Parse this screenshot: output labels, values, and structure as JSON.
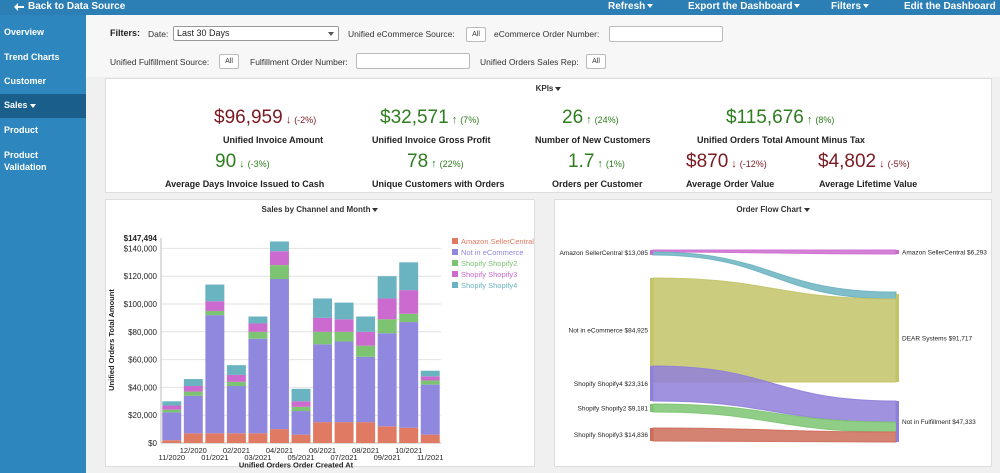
{
  "topbar": {
    "back_label": "Back to Data Source",
    "refresh_label": "Refresh",
    "export_label": "Export the Dashboard",
    "filters_label": "Filters",
    "edit_label": "Edit the Dashboard"
  },
  "sidebar": {
    "items": [
      {
        "label": "Overview"
      },
      {
        "label": "Trend Charts"
      },
      {
        "label": "Customer"
      },
      {
        "label": "Sales"
      },
      {
        "label": "Product"
      },
      {
        "label": "Product Validation"
      }
    ]
  },
  "filters": {
    "title": "Filters:",
    "date_label": "Date:",
    "date_value": "Last 30 Days",
    "ecom_source_label": "Unified eCommerce Source:",
    "ecom_source_value": "All",
    "ecom_order_label": "eCommerce Order Number:",
    "fulfill_source_label": "Unified Fulfillment Source:",
    "fulfill_source_value": "All",
    "fulfill_order_label": "Fulfillment Order Number:",
    "sales_rep_label": "Unified Orders Sales Rep:",
    "sales_rep_value": "All"
  },
  "kpis": {
    "title": "KPIs",
    "items": [
      {
        "value": "$96,959",
        "arrow": "↓",
        "pct": "(-2%)",
        "trend": "down",
        "label": "Unified Invoice Amount"
      },
      {
        "value": "$32,571",
        "arrow": "↑",
        "pct": "(7%)",
        "trend": "up",
        "label": "Unified Invoice Gross Profit"
      },
      {
        "value": "26",
        "arrow": "↑",
        "pct": "(24%)",
        "trend": "up",
        "label": "Number of New Customers"
      },
      {
        "value": "$115,676",
        "arrow": "↑",
        "pct": "(8%)",
        "trend": "up",
        "label": "Unified Orders Total Amount Minus Tax"
      },
      {
        "value": "90",
        "arrow": "↓",
        "pct": "(-3%)",
        "trend": "up",
        "label": "Average Days Invoice Issued to Cash"
      },
      {
        "value": "78",
        "arrow": "↑",
        "pct": "(22%)",
        "trend": "up",
        "label": "Unique Customers with Orders"
      },
      {
        "value": "1.7",
        "arrow": "↑",
        "pct": "(1%)",
        "trend": "up",
        "label": "Orders per Customer"
      },
      {
        "value": "$870",
        "arrow": "↓",
        "pct": "(-12%)",
        "trend": "down",
        "label": "Average Order Value"
      },
      {
        "value": "$4,802",
        "arrow": "↓",
        "pct": "(-5%)",
        "trend": "down",
        "label": "Average Lifetime Value"
      }
    ]
  },
  "colors": {
    "up": "#2e7d1f",
    "down": "#7a1a22"
  },
  "chart_data": [
    {
      "type": "bar",
      "title": "Sales by Channel and Month",
      "xlabel": "Unified Orders Order Created At",
      "ylabel": "Unified Orders Total Amount",
      "ylim": [
        0,
        147494
      ],
      "yticks": [
        "$0",
        "$20,000",
        "$40,000",
        "$60,000",
        "$80,000",
        "$100,000",
        "$120,000",
        "$140,000"
      ],
      "ymax_label": "$147,494",
      "xtick_labels_low": [
        "11/2020",
        "01/2021",
        "03/2021",
        "05/2021",
        "07/2021",
        "09/2021",
        "11/2021"
      ],
      "xtick_labels_high": [
        "12/2020",
        "02/2021",
        "04/2021",
        "06/2021",
        "08/2021",
        "10/2021"
      ],
      "categories": [
        "11/2020",
        "12/2020",
        "01/2021",
        "02/2021",
        "03/2021",
        "04/2021",
        "05/2021",
        "06/2021",
        "07/2021",
        "08/2021",
        "09/2021",
        "10/2021",
        "11/2021"
      ],
      "series": [
        {
          "name": "Amazon SellerCentral",
          "color": "#e07a63",
          "values": [
            2000,
            7000,
            7000,
            7000,
            7000,
            10000,
            6000,
            15000,
            15000,
            15000,
            12000,
            11000,
            6000
          ]
        },
        {
          "name": "Not in eCommerce",
          "color": "#9088de",
          "values": [
            20000,
            27000,
            85000,
            34000,
            68000,
            108000,
            17000,
            56000,
            58000,
            47000,
            67000,
            76000,
            36000
          ]
        },
        {
          "name": "Shopify Shopify2",
          "color": "#7cc472",
          "values": [
            2000,
            3000,
            3000,
            3000,
            5000,
            10000,
            3000,
            9000,
            7000,
            8000,
            10000,
            6000,
            3000
          ]
        },
        {
          "name": "Shopify Shopify3",
          "color": "#cc6bcf",
          "values": [
            3000,
            4000,
            7000,
            5000,
            6000,
            10000,
            4000,
            10000,
            9000,
            10000,
            15000,
            17000,
            3000
          ]
        },
        {
          "name": "Shopify Shopify4",
          "color": "#6ab3c0",
          "values": [
            3000,
            5000,
            12000,
            7000,
            5000,
            7000,
            9000,
            14000,
            12000,
            11000,
            16000,
            20000,
            4000
          ]
        }
      ]
    },
    {
      "type": "sankey",
      "title": "Order Flow Chart",
      "sources": [
        {
          "label": "Amazon SellerCentral $13,085",
          "value": 13085
        },
        {
          "label": "Not in eCommerce $84,925",
          "value": 84925
        },
        {
          "label": "Shopify Shopify4 $23,316",
          "value": 23316
        },
        {
          "label": "Shopify Shopify2 $9,181",
          "value": 9181
        },
        {
          "label": "Shopify Shopify3 $14,836",
          "value": 14836
        }
      ],
      "targets": [
        {
          "label": "Amazon SellerCentral $6,293",
          "value": 6293
        },
        {
          "label": "DEAR Systems $91,717",
          "value": 91717
        },
        {
          "label": "Not in Fulfillment $47,333",
          "value": 47333
        }
      ]
    }
  ]
}
